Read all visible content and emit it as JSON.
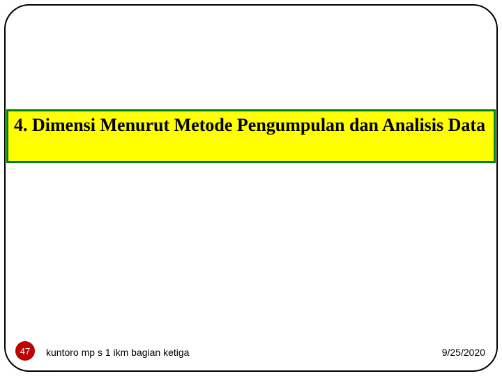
{
  "title_banner": {
    "text": "4. Dimensi Menurut Metode Pengumpulan dan Analisis Data",
    "background_color": "#ffff00",
    "border_color": "#008000",
    "border_width": 3,
    "font_family": "Times New Roman",
    "font_size": 26,
    "font_weight": "bold",
    "text_color": "#000000"
  },
  "footer": {
    "slide_number": "47",
    "slide_number_bg": "#c00000",
    "slide_number_color": "#ffffff",
    "author": "kuntoro mp s 1 ikm bagian ketiga",
    "date": "9/25/2020",
    "font_family": "Arial",
    "font_size": 14,
    "text_color": "#000000"
  },
  "frame": {
    "border_color": "#000000",
    "border_width": 2.5,
    "border_radius": 36,
    "background_color": "#ffffff"
  }
}
